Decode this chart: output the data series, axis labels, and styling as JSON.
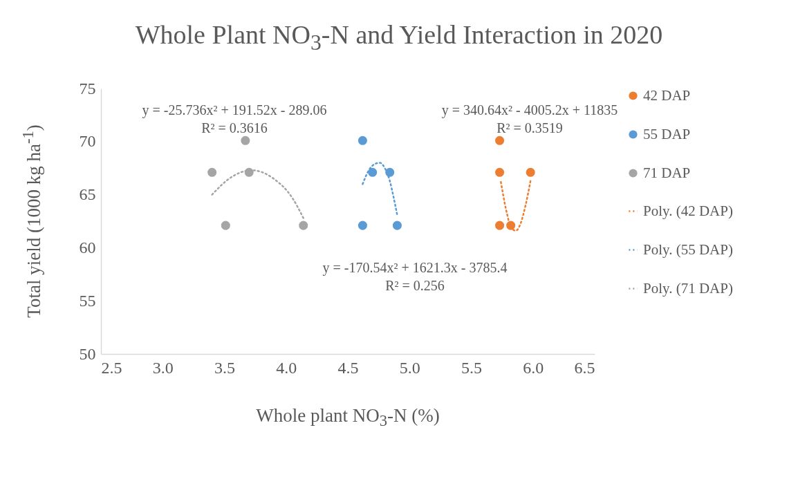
{
  "chart_data": {
    "type": "scatter",
    "title": "Whole Plant NO$_{3}$-N and Yield Interaction in 2020",
    "xlabel": "Whole plant NO$_{3}$-N (%)",
    "ylabel": "Total yield (1000 kg ha$^{-1}$)",
    "xlim": [
      2.5,
      6.5
    ],
    "xticks": [
      2.5,
      {
        "value": 3,
        "label": "3.0"
      },
      3.5,
      {
        "value": 4,
        "label": "4.0"
      },
      4.5,
      {
        "value": 5,
        "label": "5.0"
      },
      5.5,
      {
        "value": 6,
        "label": "6.0"
      },
      6.5
    ],
    "ylim": [
      50,
      75
    ],
    "yticks": [
      50,
      55,
      60,
      65,
      70,
      75
    ],
    "grid": false,
    "legend": "right",
    "series": [
      {
        "name": "42 DAP",
        "marker": "circle",
        "color": "#ed7d31",
        "x": [
          5.73,
          5.73,
          5.73,
          5.82,
          5.98
        ],
        "values": [
          70.1,
          67.1,
          62.1,
          62.1,
          67.1
        ]
      },
      {
        "name": "55 DAP",
        "marker": "circle",
        "color": "#5b9bd5",
        "x": [
          4.62,
          4.62,
          4.7,
          4.84,
          4.9
        ],
        "values": [
          70.1,
          62.1,
          67.1,
          67.1,
          62.1
        ]
      },
      {
        "name": "71 DAP",
        "marker": "circle",
        "color": "#a5a5a5",
        "x": [
          3.4,
          3.67,
          3.51,
          3.7,
          4.14
        ],
        "values": [
          67.1,
          70.1,
          62.1,
          67.1,
          62.1
        ]
      },
      {
        "name": "Poly. (42 DAP)",
        "type": "line",
        "marker": "none",
        "line_style": "dotted",
        "color": "#ed7d31",
        "x": [
          5.74,
          5.78,
          5.82,
          5.86,
          5.9,
          5.94,
          5.98
        ],
        "values": [
          66.2,
          63.7,
          62.0,
          61.6,
          62.3,
          64.0,
          66.3
        ]
      },
      {
        "name": "Poly. (55 DAP)",
        "type": "line",
        "marker": "none",
        "line_style": "dotted",
        "color": "#5b9bd5",
        "x": [
          4.62,
          4.67,
          4.72,
          4.76,
          4.8,
          4.84,
          4.87,
          4.9
        ],
        "values": [
          66.0,
          67.3,
          67.9,
          68.0,
          67.5,
          66.3,
          64.8,
          63.1
        ]
      },
      {
        "name": "Poly. (71 DAP)",
        "type": "line",
        "marker": "none",
        "line_style": "dotted",
        "color": "#a5a5a5",
        "x": [
          3.4,
          3.55,
          3.72,
          3.9,
          4.05,
          4.14
        ],
        "values": [
          65.0,
          66.6,
          67.3,
          66.5,
          64.7,
          62.8
        ]
      }
    ],
    "annotations": [
      "y = 340.64x² - 4005.2x + 11835\nR² = 0.3519",
      "y = -170.54x² + 1621.3x - 3785.4\nR² = 0.256",
      "y = -25.736x² + 191.52x - 289.06\nR² = 0.3616"
    ]
  }
}
